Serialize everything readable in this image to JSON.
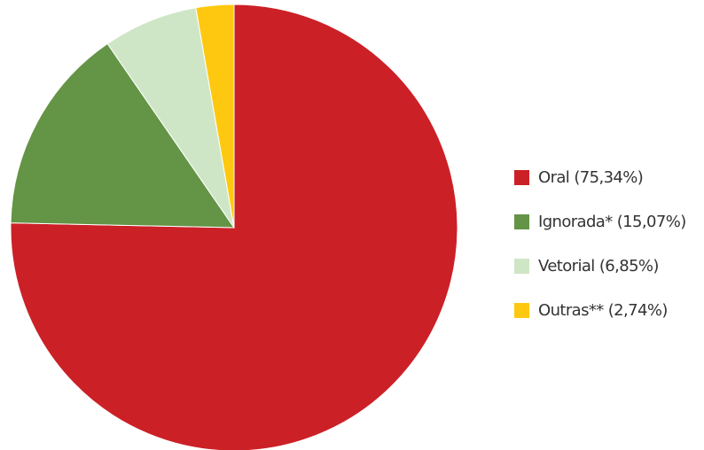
{
  "chart_data": {
    "type": "pie",
    "slices": [
      {
        "label": "Oral",
        "value": 75.34,
        "display": "Oral (75,34%)",
        "color": "#cc2027"
      },
      {
        "label": "Ignorada*",
        "value": 15.07,
        "display": "Ignorada* (15,07%)",
        "color": "#649445"
      },
      {
        "label": "Vetorial",
        "value": 6.85,
        "display": "Vetorial (6,85%)",
        "color": "#cfe6c6"
      },
      {
        "label": "Outras**",
        "value": 2.74,
        "display": "Outras** (2,74%)",
        "color": "#fdc80f"
      }
    ],
    "start": "12 o'clock",
    "direction": "clockwise",
    "legend_position": "right"
  }
}
